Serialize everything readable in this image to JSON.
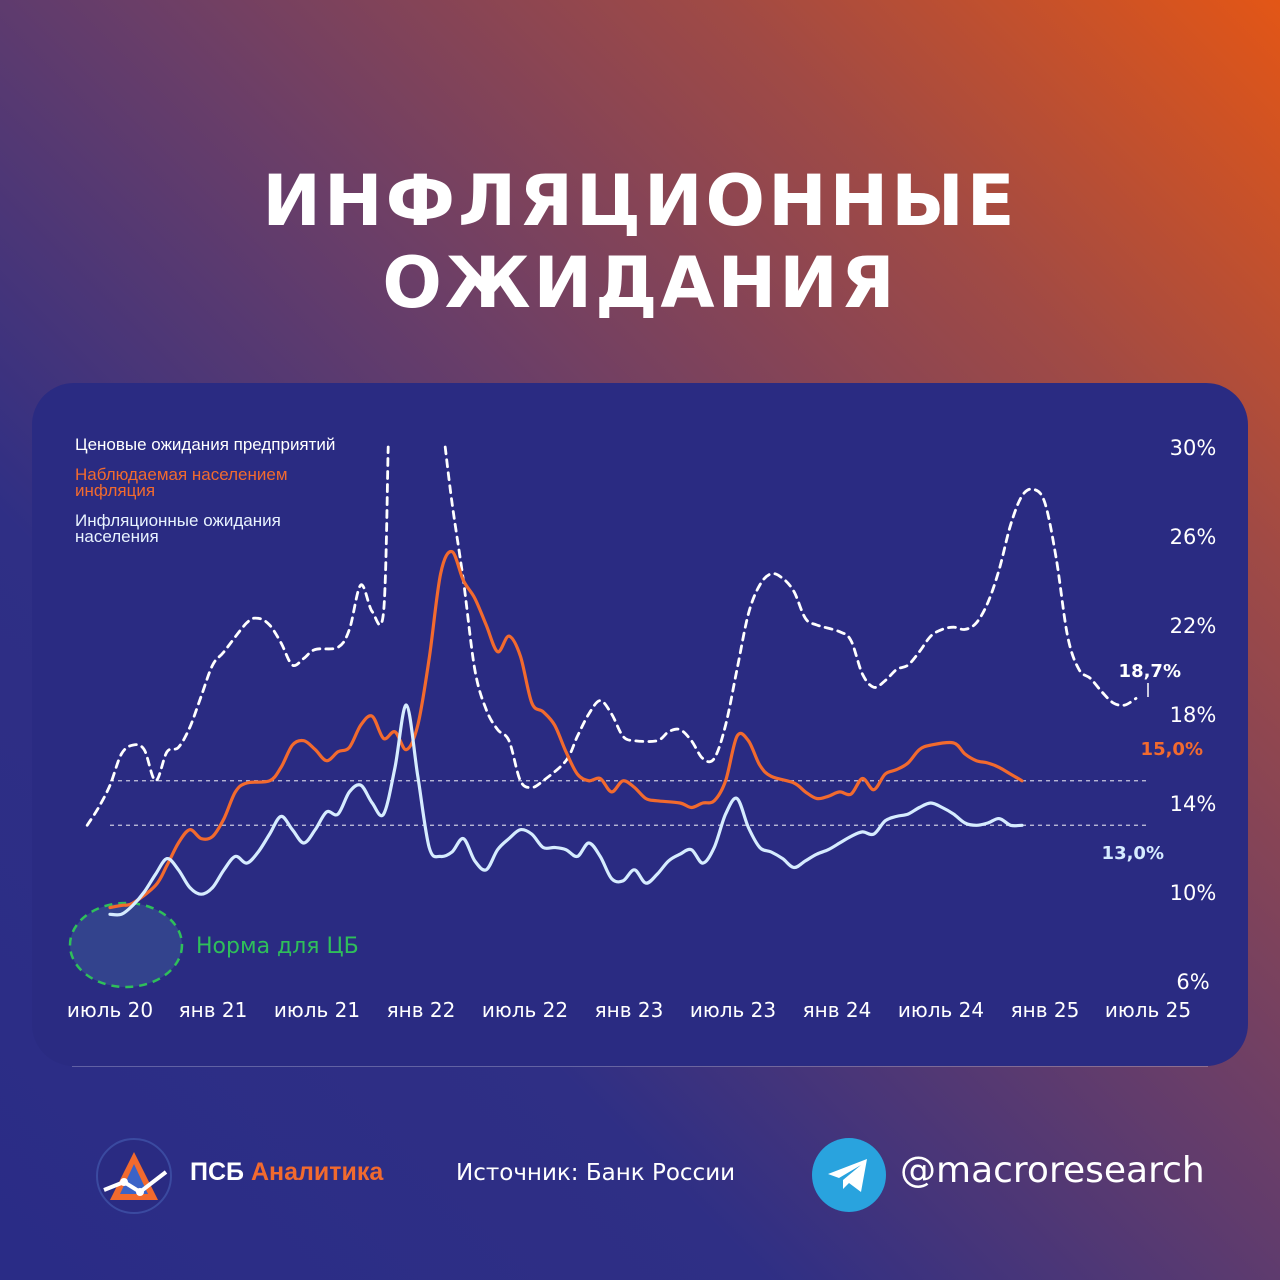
{
  "header": {
    "title": "ИНФЛЯЦИОННЫЕ ОЖИДАНИЯ"
  },
  "legend": {
    "business": "Ценовые ожидания предприятий",
    "observed": "Наблюдаемая населением инфляция",
    "expected": "Инфляционные ожидания населения"
  },
  "annotations": {
    "norm_label": "Норма для ЦБ",
    "last_business": "18,7%",
    "last_observed": "15,0%",
    "last_expected": "13,0%"
  },
  "footer": {
    "brand_part1": "ПСБ",
    "brand_part2": "Аналитика",
    "source": "Источник: Банк России",
    "handle": "@macroresearch"
  },
  "colors": {
    "business": "#ffffff",
    "observed": "#f26a2e",
    "expected": "#d6ecff",
    "norm": "#2fbf5a",
    "accent": "#f26a2e"
  },
  "icons": {
    "brand": "psb-analytics-logo-icon",
    "telegram": "telegram-icon"
  },
  "chart_data": {
    "type": "line",
    "x_tick_labels": [
      "июль 20",
      "янв 21",
      "июль 21",
      "янв 22",
      "июль 22",
      "янв 23",
      "июль 23",
      "янв 24",
      "июль 24",
      "янв 25",
      "июль 25"
    ],
    "y_tick_labels": [
      "30%",
      "26%",
      "22%",
      "18%",
      "14%",
      "10%",
      "6%"
    ],
    "ylim": [
      6,
      30
    ],
    "reference_lines": [
      15.0,
      13.0
    ],
    "series": [
      {
        "name": "Ценовые ожидания предприятий",
        "style": "dashed",
        "segments": [
          [
            [
              -1,
              13.0
            ],
            [
              -0.5,
              13.8
            ],
            [
              0,
              14.8
            ],
            [
              0.5,
              16.2
            ],
            [
              1,
              16.6
            ],
            [
              1.5,
              16.4
            ],
            [
              2,
              15.0
            ],
            [
              2.5,
              16.3
            ],
            [
              3,
              16.5
            ],
            [
              3.5,
              17.4
            ],
            [
              4,
              18.8
            ],
            [
              4.5,
              20.2
            ],
            [
              5,
              20.8
            ],
            [
              6,
              22.1
            ],
            [
              6.5,
              22.3
            ],
            [
              7,
              22.0
            ],
            [
              7.5,
              21.2
            ],
            [
              8,
              20.2
            ],
            [
              8.5,
              20.5
            ],
            [
              9,
              20.9
            ],
            [
              10,
              21.0
            ],
            [
              10.5,
              21.8
            ],
            [
              11,
              23.8
            ],
            [
              11.5,
              22.6
            ],
            [
              12,
              22.6
            ],
            [
              12.2,
              30.0
            ]
          ],
          [
            [
              14.7,
              30.0
            ],
            [
              15,
              27.5
            ],
            [
              15.5,
              24.0
            ],
            [
              16,
              20.0
            ],
            [
              16.5,
              18.2
            ],
            [
              17,
              17.3
            ],
            [
              17.5,
              16.8
            ],
            [
              18,
              15.0
            ],
            [
              18.5,
              14.7
            ],
            [
              19,
              15.0
            ],
            [
              20,
              15.9
            ],
            [
              20.5,
              17.0
            ],
            [
              21,
              18.0
            ],
            [
              21.5,
              18.6
            ],
            [
              22,
              18.0
            ],
            [
              22.5,
              17.0
            ],
            [
              23,
              16.8
            ],
            [
              24,
              16.8
            ],
            [
              24.5,
              17.2
            ],
            [
              25,
              17.3
            ],
            [
              25.5,
              16.8
            ],
            [
              26,
              16.0
            ],
            [
              26.5,
              16.0
            ],
            [
              27,
              17.5
            ],
            [
              27.5,
              20.0
            ],
            [
              28,
              22.5
            ],
            [
              28.5,
              23.8
            ],
            [
              29,
              24.3
            ],
            [
              29.5,
              24.1
            ],
            [
              30,
              23.5
            ],
            [
              30.5,
              22.3
            ],
            [
              31,
              22.0
            ],
            [
              32,
              21.7
            ],
            [
              32.5,
              21.3
            ],
            [
              33,
              19.8
            ],
            [
              33.5,
              19.2
            ],
            [
              34,
              19.5
            ],
            [
              34.5,
              20.0
            ],
            [
              35,
              20.2
            ],
            [
              35.5,
              20.8
            ],
            [
              36,
              21.5
            ],
            [
              36.5,
              21.8
            ],
            [
              37,
              21.9
            ],
            [
              37.5,
              21.8
            ],
            [
              38,
              22.1
            ],
            [
              38.5,
              23.0
            ],
            [
              39,
              24.5
            ],
            [
              39.5,
              26.5
            ],
            [
              40,
              27.8
            ],
            [
              40.5,
              28.1
            ],
            [
              41,
              27.5
            ],
            [
              41.5,
              25.0
            ],
            [
              42,
              21.5
            ],
            [
              42.5,
              20.0
            ],
            [
              43,
              19.6
            ],
            [
              43.5,
              19.0
            ],
            [
              44,
              18.5
            ],
            [
              44.5,
              18.4
            ],
            [
              45,
              18.7
            ]
          ]
        ]
      },
      {
        "name": "Наблюдаемая населением инфляция",
        "style": "solid",
        "segments": [
          [
            [
              0,
              9.3
            ],
            [
              0.5,
              9.4
            ],
            [
              1,
              9.5
            ],
            [
              2,
              10.3
            ],
            [
              2.5,
              11.2
            ],
            [
              3,
              12.2
            ],
            [
              3.5,
              12.8
            ],
            [
              4,
              12.4
            ],
            [
              4.5,
              12.5
            ],
            [
              5,
              13.3
            ],
            [
              5.5,
              14.5
            ],
            [
              6,
              14.9
            ],
            [
              7,
              15.0
            ],
            [
              7.5,
              15.6
            ],
            [
              8,
              16.6
            ],
            [
              8.5,
              16.8
            ],
            [
              9,
              16.4
            ],
            [
              9.5,
              15.9
            ],
            [
              10,
              16.3
            ],
            [
              10.5,
              16.5
            ],
            [
              11,
              17.5
            ],
            [
              11.5,
              17.9
            ],
            [
              12,
              16.9
            ],
            [
              12.5,
              17.2
            ],
            [
              13,
              16.4
            ],
            [
              13.5,
              17.5
            ],
            [
              14,
              20.5
            ],
            [
              14.5,
              24.3
            ],
            [
              15,
              25.3
            ],
            [
              15.5,
              24.0
            ],
            [
              16,
              23.2
            ],
            [
              16.5,
              22.0
            ],
            [
              17,
              20.8
            ],
            [
              17.5,
              21.5
            ],
            [
              18,
              20.6
            ],
            [
              18.5,
              18.5
            ],
            [
              19,
              18.1
            ],
            [
              19.5,
              17.5
            ],
            [
              20,
              16.3
            ],
            [
              20.5,
              15.3
            ],
            [
              21,
              15.0
            ],
            [
              21.5,
              15.1
            ],
            [
              22,
              14.5
            ],
            [
              22.5,
              15.0
            ],
            [
              23,
              14.7
            ],
            [
              23.5,
              14.2
            ],
            [
              24,
              14.1
            ],
            [
              25,
              14.0
            ],
            [
              25.5,
              13.8
            ],
            [
              26,
              14.0
            ],
            [
              26.5,
              14.1
            ],
            [
              27,
              15.0
            ],
            [
              27.5,
              17.0
            ],
            [
              28,
              16.8
            ],
            [
              28.5,
              15.7
            ],
            [
              29,
              15.2
            ],
            [
              30,
              14.9
            ],
            [
              30.5,
              14.5
            ],
            [
              31,
              14.2
            ],
            [
              31.5,
              14.3
            ],
            [
              32,
              14.5
            ],
            [
              32.5,
              14.4
            ],
            [
              33,
              15.1
            ],
            [
              33.5,
              14.6
            ],
            [
              34,
              15.3
            ],
            [
              34.5,
              15.5
            ],
            [
              35,
              15.8
            ],
            [
              35.5,
              16.4
            ],
            [
              36,
              16.6
            ],
            [
              37,
              16.7
            ],
            [
              37.5,
              16.2
            ],
            [
              38,
              15.9
            ],
            [
              38.5,
              15.8
            ],
            [
              39,
              15.6
            ],
            [
              39.5,
              15.3
            ],
            [
              40,
              15.0
            ]
          ]
        ]
      },
      {
        "name": "Инфляционные ожидания населения",
        "style": "solid",
        "segments": [
          [
            [
              0,
              9.0
            ],
            [
              0.5,
              9.0
            ],
            [
              1,
              9.4
            ],
            [
              1.5,
              10.0
            ],
            [
              2,
              10.8
            ],
            [
              2.5,
              11.5
            ],
            [
              3,
              11.0
            ],
            [
              3.5,
              10.2
            ],
            [
              4,
              9.9
            ],
            [
              4.5,
              10.2
            ],
            [
              5,
              11.0
            ],
            [
              5.5,
              11.6
            ],
            [
              6,
              11.3
            ],
            [
              6.5,
              11.8
            ],
            [
              7,
              12.6
            ],
            [
              7.5,
              13.4
            ],
            [
              8,
              12.8
            ],
            [
              8.5,
              12.2
            ],
            [
              9,
              12.8
            ],
            [
              9.5,
              13.6
            ],
            [
              10,
              13.5
            ],
            [
              10.5,
              14.5
            ],
            [
              11,
              14.8
            ],
            [
              11.5,
              14.0
            ],
            [
              12,
              13.5
            ],
            [
              12.5,
              15.6
            ],
            [
              13,
              18.4
            ],
            [
              13.5,
              15.2
            ],
            [
              14,
              12.0
            ],
            [
              14.5,
              11.6
            ],
            [
              15,
              11.8
            ],
            [
              15.5,
              12.4
            ],
            [
              16,
              11.4
            ],
            [
              16.5,
              11.0
            ],
            [
              17,
              11.9
            ],
            [
              17.5,
              12.4
            ],
            [
              18,
              12.8
            ],
            [
              18.5,
              12.6
            ],
            [
              19,
              12.0
            ],
            [
              19.5,
              12.0
            ],
            [
              20,
              11.9
            ],
            [
              20.5,
              11.6
            ],
            [
              21,
              12.2
            ],
            [
              21.5,
              11.6
            ],
            [
              22,
              10.6
            ],
            [
              22.5,
              10.5
            ],
            [
              23,
              11.0
            ],
            [
              23.5,
              10.4
            ],
            [
              24,
              10.8
            ],
            [
              24.5,
              11.4
            ],
            [
              25,
              11.7
            ],
            [
              25.5,
              11.9
            ],
            [
              26,
              11.3
            ],
            [
              26.5,
              12.0
            ],
            [
              27,
              13.5
            ],
            [
              27.5,
              14.2
            ],
            [
              28,
              12.9
            ],
            [
              28.5,
              12.0
            ],
            [
              29,
              11.8
            ],
            [
              29.5,
              11.5
            ],
            [
              30,
              11.1
            ],
            [
              30.5,
              11.4
            ],
            [
              31,
              11.7
            ],
            [
              31.5,
              11.9
            ],
            [
              32,
              12.2
            ],
            [
              32.5,
              12.5
            ],
            [
              33,
              12.7
            ],
            [
              33.5,
              12.6
            ],
            [
              34,
              13.2
            ],
            [
              34.5,
              13.4
            ],
            [
              35,
              13.5
            ],
            [
              35.5,
              13.8
            ],
            [
              36,
              14.0
            ],
            [
              36.5,
              13.8
            ],
            [
              37,
              13.5
            ],
            [
              37.5,
              13.1
            ],
            [
              38,
              13.0
            ],
            [
              38.5,
              13.1
            ],
            [
              39,
              13.3
            ],
            [
              39.5,
              13.0
            ],
            [
              40,
              13.0
            ]
          ]
        ]
      }
    ]
  }
}
